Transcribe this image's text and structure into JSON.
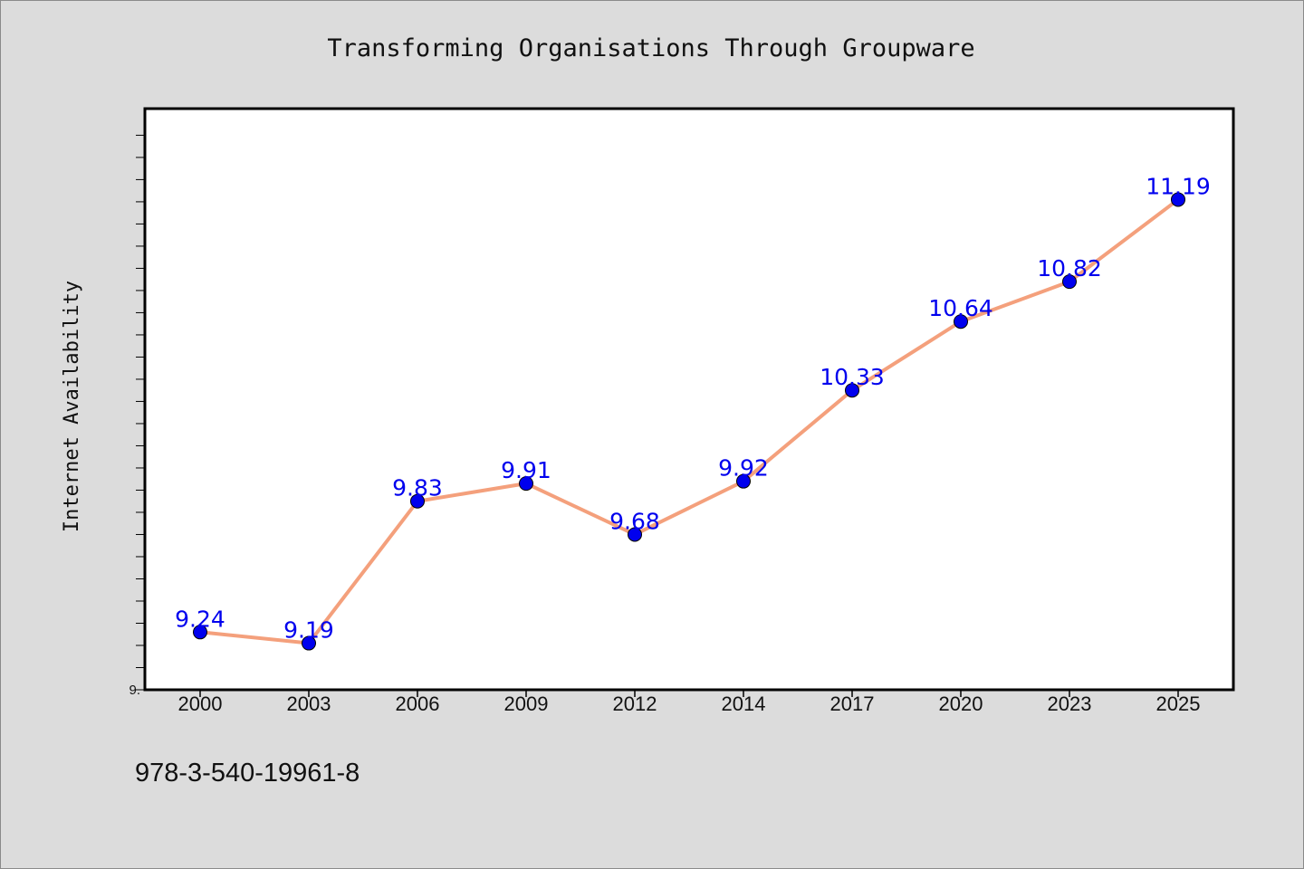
{
  "chart_data": {
    "type": "line",
    "title": "Transforming Organisations Through Groupware",
    "xlabel": "",
    "ylabel": "Internet Availability",
    "categories": [
      "2000",
      "2003",
      "2006",
      "2009",
      "2012",
      "2014",
      "2017",
      "2020",
      "2023",
      "2025"
    ],
    "series": [
      {
        "values": [
          9.24,
          9.19,
          9.83,
          9.91,
          9.68,
          9.92,
          10.33,
          10.64,
          10.82,
          11.19
        ],
        "line_color": "#f4a07c",
        "marker_color": "#0000ee",
        "label_color": "#0000ee"
      }
    ],
    "ylim": [
      8.98,
      11.6
    ],
    "y_tick_labels": [
      {
        "value": 8.98,
        "label": "9."
      }
    ],
    "y_minor_tick_step": 0.1,
    "grid": false,
    "legend": "none"
  },
  "footer": {
    "isbn": "978-3-540-19961-8"
  }
}
